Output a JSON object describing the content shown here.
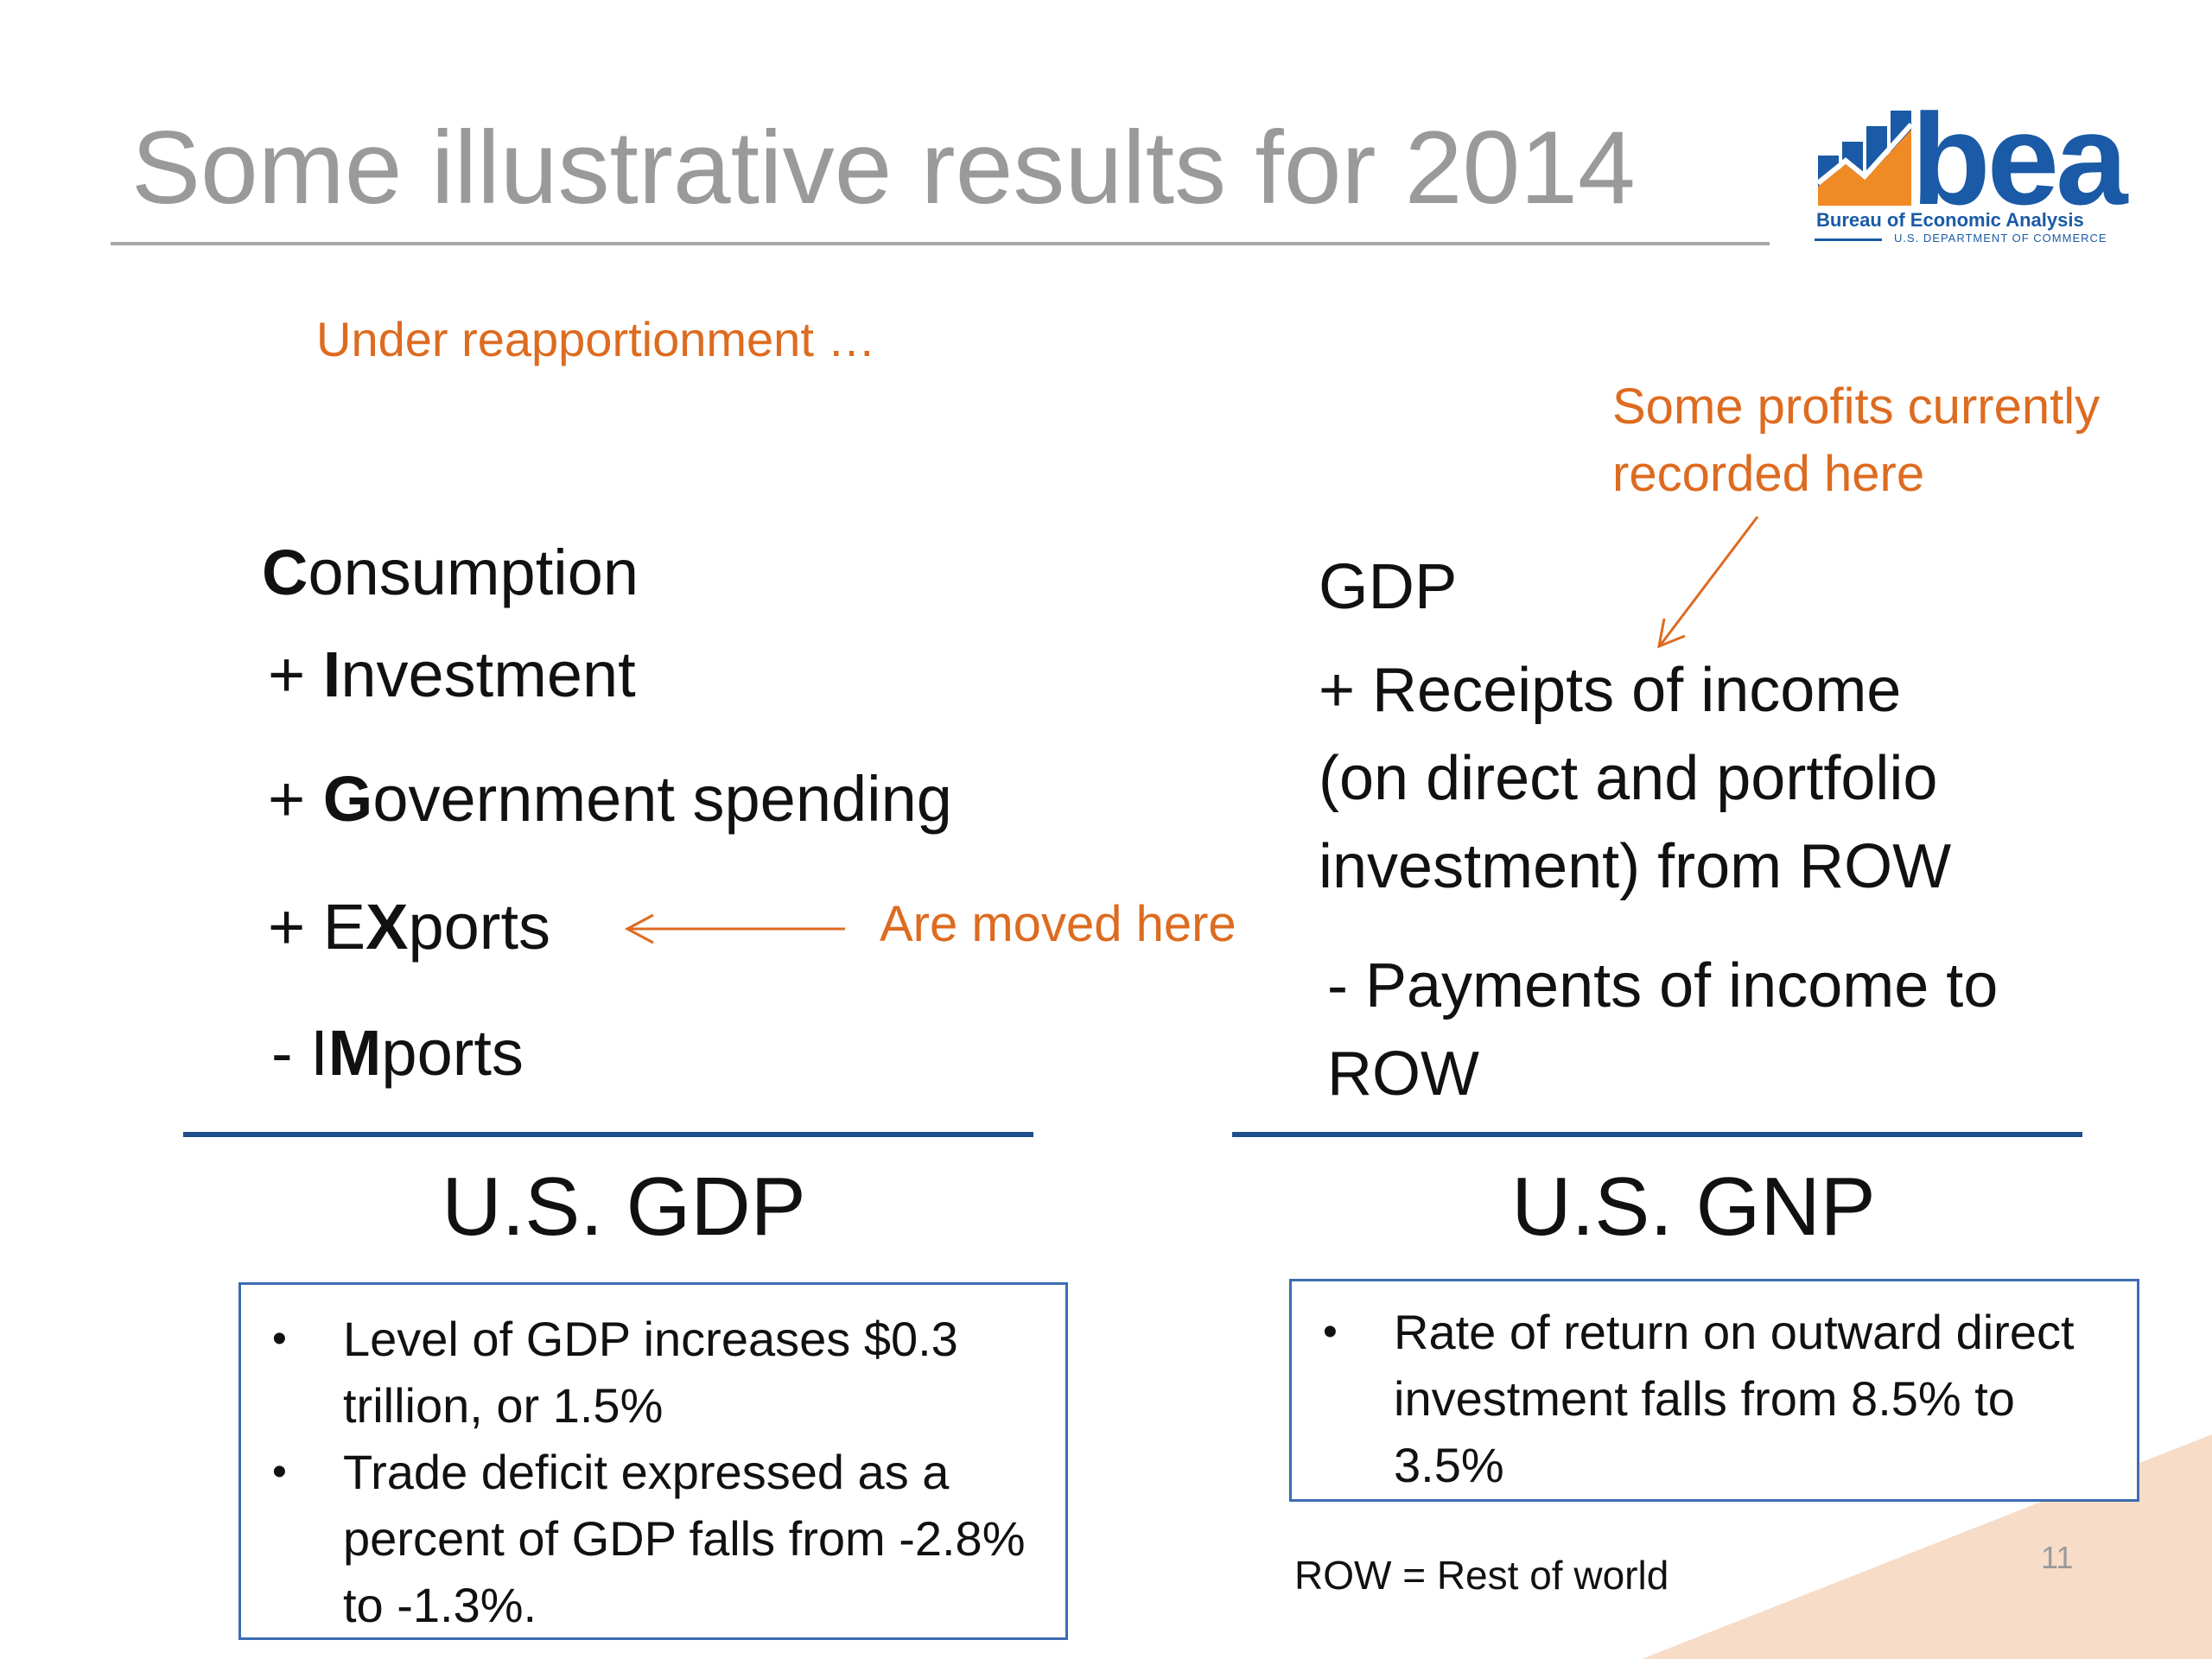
{
  "slide": {
    "title": "Some illustrative results for 2014",
    "subtitle": "Under reapportionment …",
    "page_number": "11",
    "footnote": "ROW = Rest of world"
  },
  "logo": {
    "wordmark": "bea",
    "name": "Bureau of Economic Analysis",
    "department": "U.S. DEPARTMENT OF COMMERCE"
  },
  "left": {
    "consumption": {
      "bold": "C",
      "rest": "onsumption"
    },
    "investment": {
      "prefix": "+ ",
      "bold": "I",
      "rest": "nvestment"
    },
    "government": {
      "prefix": "+ ",
      "bold": "G",
      "rest": "overnment spending"
    },
    "exports": {
      "prefix": "+ E",
      "bold": "X",
      "rest": "ports"
    },
    "imports": {
      "prefix": "- I",
      "bold": "M",
      "rest": "ports"
    },
    "moved_label": "Are moved here",
    "result": "U.S. GDP",
    "bullets": [
      "Level of GDP increases $0.3 trillion, or 1.5%",
      "Trade deficit expressed as a percent of GDP falls from -2.8% to -1.3%."
    ]
  },
  "right": {
    "gdp": "GDP",
    "receipts_lines": [
      "+ Receipts of income",
      "(on direct and portfolio",
      "investment) from ROW"
    ],
    "payments_lines": [
      "- Payments of income to",
      "ROW"
    ],
    "note_lines": [
      "Some profits currently",
      "recorded here"
    ],
    "result": "U.S. GNP",
    "bullets": [
      "Rate of return on outward direct investment falls from 8.5% to 3.5%"
    ]
  },
  "colors": {
    "title": "#9a9a9a",
    "accent_orange": "#dd6b20",
    "rule_blue": "#1f4e8c",
    "box_border": "#3d6cb3",
    "logo_blue": "#1a5aa6",
    "corner_peach": "#f7dcc8"
  }
}
